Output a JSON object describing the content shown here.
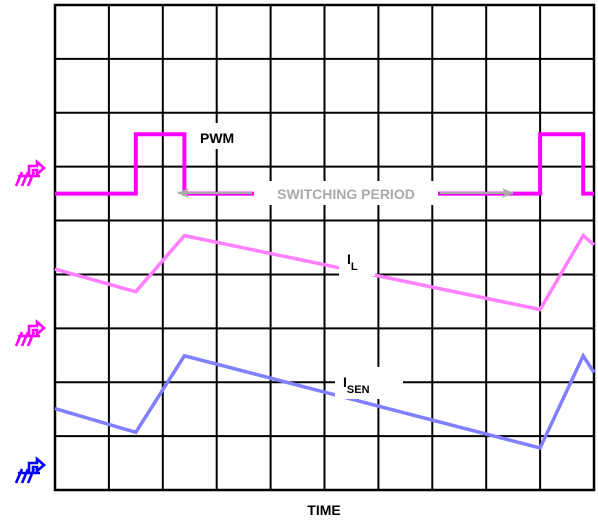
{
  "colors": {
    "pwm": "#ff00ff",
    "inductor_current": "#ff7fff",
    "sense_current": "#7f7fff",
    "ground_pwm": "#ff00ff",
    "ground_il": "#ff00ff",
    "ground_isen": "#0000ff",
    "grid": "#000000",
    "annotation": "#aaaaaa"
  },
  "labels": {
    "pwm": "PWM",
    "il_main": "I",
    "il_sub": "L",
    "isen_main": "I",
    "isen_sub": "SEN",
    "switching_period": "SWITCHING PERIOD",
    "time_axis": "TIME"
  },
  "chart_data": {
    "type": "line",
    "title": "",
    "xlabel": "TIME",
    "ylabel": "",
    "grid": true,
    "grid_divisions": {
      "x": 10,
      "y": 9
    },
    "x_range": [
      0,
      10
    ],
    "series": [
      {
        "name": "PWM",
        "color_key": "pwm",
        "shape": "step",
        "x": [
          0,
          1.5,
          1.5,
          2.4,
          2.4,
          9.0,
          9.0,
          9.8,
          9.8,
          10
        ],
        "y": [
          5.5,
          5.5,
          6.6,
          6.6,
          5.5,
          5.5,
          6.6,
          6.6,
          5.5,
          5.5
        ]
      },
      {
        "name": "I_L",
        "color_key": "inductor_current",
        "shape": "linear",
        "x": [
          0,
          1.5,
          2.4,
          9.0,
          9.8,
          10
        ],
        "y": [
          4.1,
          3.68,
          4.72,
          3.35,
          4.72,
          4.55
        ]
      },
      {
        "name": "I_SEN",
        "color_key": "sense_current",
        "shape": "linear",
        "x": [
          0,
          1.5,
          2.4,
          9.0,
          9.8,
          10
        ],
        "y": [
          1.51,
          1.07,
          2.49,
          0.78,
          2.49,
          2.18
        ]
      }
    ]
  }
}
